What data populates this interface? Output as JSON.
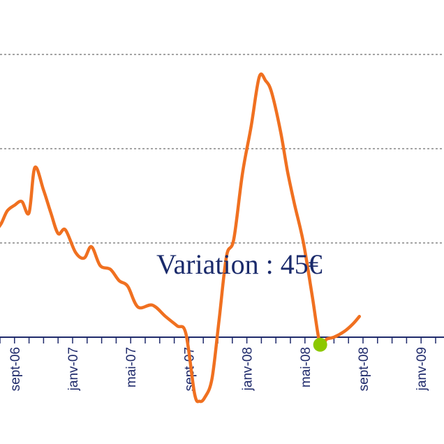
{
  "chart_data": {
    "type": "line",
    "title": "",
    "xlabel": "",
    "ylabel": "",
    "tick_labels": [
      "sept-06",
      "janv-07",
      "mai-07",
      "sept-07",
      "janv-08",
      "mai-08",
      "sept-08",
      "janv-09"
    ],
    "annotation": "Variation : 45€",
    "grid": "horizontal dashed",
    "series": [
      {
        "color": "#f07020",
        "values": [
          [
            -0.18,
            0.575
          ],
          [
            0.1,
            0.605
          ],
          [
            0.5,
            0.67
          ],
          [
            1.0,
            0.7
          ],
          [
            1.5,
            0.72
          ],
          [
            2.0,
            0.66
          ],
          [
            2.4,
            0.9
          ],
          [
            3.0,
            0.78
          ],
          [
            3.5,
            0.66
          ],
          [
            4.0,
            0.55
          ],
          [
            4.5,
            0.57
          ],
          [
            5.2,
            0.45
          ],
          [
            5.8,
            0.42
          ],
          [
            6.3,
            0.48
          ],
          [
            6.9,
            0.38
          ],
          [
            7.6,
            0.36
          ],
          [
            8.2,
            0.3
          ],
          [
            8.8,
            0.27
          ],
          [
            9.5,
            0.16
          ],
          [
            10.5,
            0.17
          ],
          [
            11.4,
            0.11
          ],
          [
            12.2,
            0.06
          ],
          [
            12.8,
            0.02
          ],
          [
            13.4,
            -0.3
          ],
          [
            13.75,
            -0.34
          ],
          [
            14.1,
            -0.32
          ],
          [
            14.6,
            -0.22
          ],
          [
            15.1,
            0.1
          ],
          [
            15.6,
            0.43
          ],
          [
            16.1,
            0.52
          ],
          [
            16.7,
            0.87
          ],
          [
            17.3,
            1.12
          ],
          [
            17.85,
            1.38
          ],
          [
            18.3,
            1.36
          ],
          [
            18.7,
            1.3
          ],
          [
            19.3,
            1.1
          ],
          [
            19.8,
            0.88
          ],
          [
            20.3,
            0.7
          ],
          [
            20.9,
            0.5
          ],
          [
            21.5,
            0.22
          ],
          [
            22.05,
            -0.04
          ],
          [
            22.5,
            -0.01
          ],
          [
            23.0,
            0.0
          ],
          [
            23.7,
            0.03
          ],
          [
            24.3,
            0.07
          ],
          [
            24.75,
            0.11
          ]
        ],
        "marker": {
          "x": 22.05,
          "y": -0.04,
          "color": "#8cc800"
        }
      }
    ]
  }
}
